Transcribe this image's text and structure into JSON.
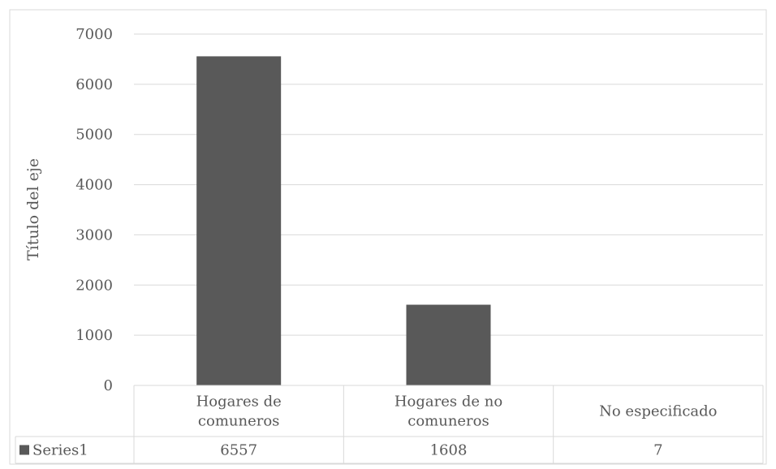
{
  "chart_data": {
    "type": "bar",
    "ylabel": "Título del eje",
    "ylim": [
      0,
      7000
    ],
    "yticks": [
      0,
      1000,
      2000,
      3000,
      4000,
      5000,
      6000,
      7000
    ],
    "grid": true,
    "legend": "data-table",
    "categories": [
      [
        "Hogares de",
        "comuneros"
      ],
      [
        "Hogares de no",
        "comuneros"
      ],
      [
        "No especificado"
      ]
    ],
    "series": [
      {
        "name": "Series1",
        "values": [
          6557,
          1608,
          7
        ],
        "color": "#595959"
      }
    ]
  }
}
